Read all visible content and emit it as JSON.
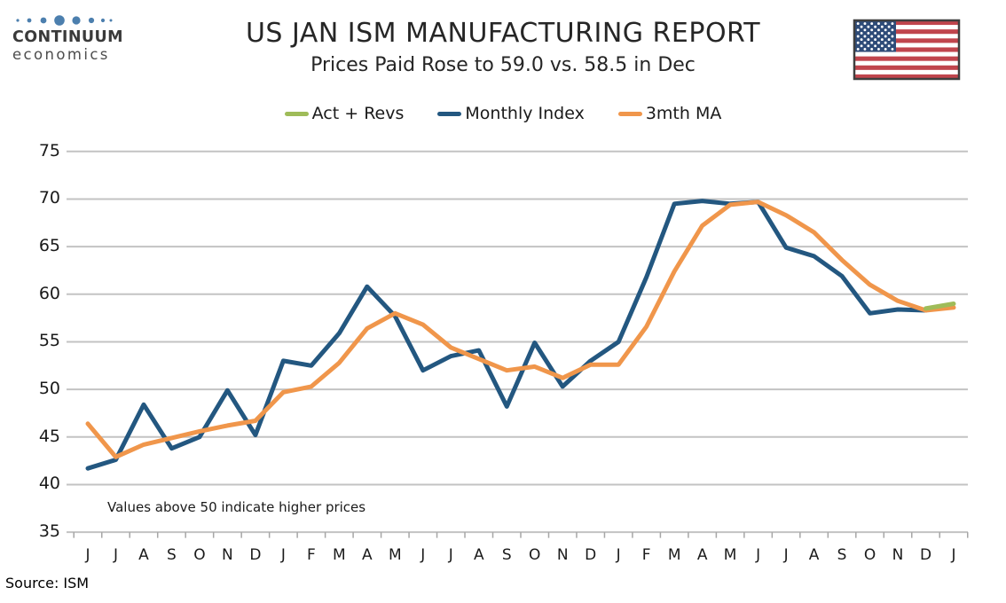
{
  "logo": {
    "brand": "CONTINUUM",
    "brand_sub": "economics"
  },
  "chart_data": {
    "type": "line",
    "title": "US JAN ISM MANUFACTURING REPORT",
    "subtitle": "Prices Paid Rose to 59.0 vs. 58.5 in Dec",
    "annotation": "Values above 50 indicate higher prices",
    "source": "Source: ISM",
    "categories": [
      "J",
      "J",
      "A",
      "S",
      "O",
      "N",
      "D",
      "J",
      "F",
      "M",
      "A",
      "M",
      "J",
      "J",
      "A",
      "S",
      "O",
      "N",
      "D",
      "J",
      "F",
      "M",
      "A",
      "M",
      "J",
      "J",
      "A",
      "S",
      "O",
      "N",
      "D",
      "J"
    ],
    "series": [
      {
        "name": "Act + Revs",
        "color": "#9FBC59",
        "values": [
          null,
          null,
          null,
          null,
          null,
          null,
          null,
          null,
          null,
          null,
          null,
          null,
          null,
          null,
          null,
          null,
          null,
          null,
          null,
          null,
          null,
          null,
          null,
          null,
          null,
          null,
          null,
          null,
          null,
          null,
          58.5,
          59.0
        ]
      },
      {
        "name": "Monthly Index",
        "color": "#235780",
        "values": [
          41.7,
          42.6,
          48.4,
          43.8,
          45.0,
          49.9,
          45.2,
          53.0,
          52.5,
          55.9,
          60.8,
          57.7,
          52.0,
          53.5,
          54.1,
          48.2,
          54.9,
          50.3,
          53.0,
          55.0,
          61.8,
          69.5,
          69.8,
          69.5,
          69.7,
          64.9,
          64.0,
          61.9,
          58.0,
          58.4,
          58.3,
          null
        ]
      },
      {
        "name": "3mth MA",
        "color": "#F0964B",
        "values": [
          46.4,
          42.9,
          44.2,
          44.9,
          45.6,
          46.2,
          46.7,
          49.7,
          50.3,
          52.8,
          56.4,
          58.0,
          56.8,
          54.4,
          53.2,
          52.0,
          52.4,
          51.2,
          52.6,
          52.6,
          56.6,
          62.4,
          67.2,
          69.4,
          69.7,
          68.3,
          66.5,
          63.6,
          61.0,
          59.3,
          58.3,
          58.6
        ]
      }
    ],
    "ylim": [
      35,
      75
    ],
    "yticks": [
      75,
      70,
      65,
      60,
      55,
      50,
      45,
      40,
      35
    ],
    "grid": true,
    "legend_position": "top"
  }
}
